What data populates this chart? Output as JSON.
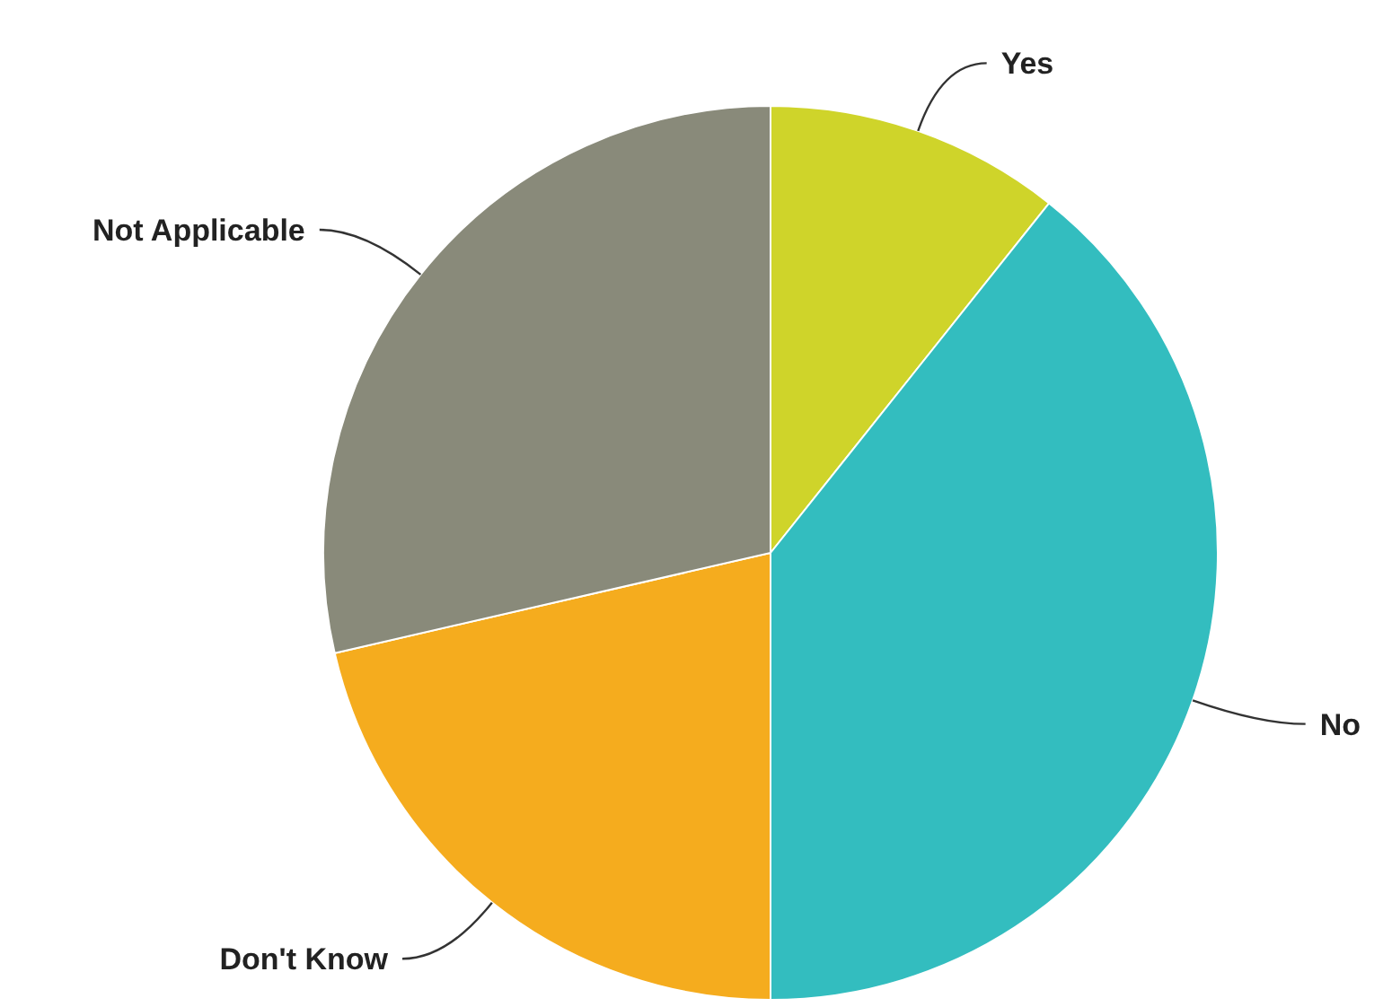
{
  "chart_data": {
    "type": "pie",
    "categories": [
      "Yes",
      "No",
      "Don't Know",
      "Not Applicable"
    ],
    "values": [
      10.7,
      39.3,
      21.4,
      28.6
    ],
    "colors": [
      "#cfd42a",
      "#33bdbf",
      "#f5ac1e",
      "#898a7a"
    ],
    "legend": false
  }
}
